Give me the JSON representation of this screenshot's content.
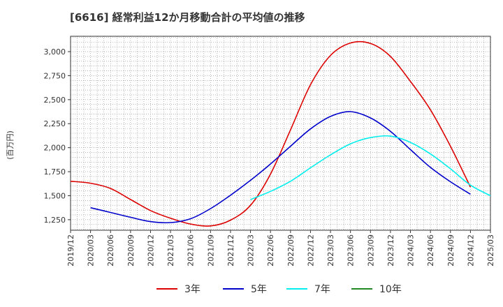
{
  "title": "[6616]  経常利益12か月移動合計の平均値の推移",
  "chart_data": {
    "type": "line",
    "title": "[6616]  経常利益12か月移動合計の平均値の推移",
    "xlabel": "",
    "ylabel": "(百万円)",
    "x_ticks": [
      "2019/12",
      "2020/03",
      "2020/06",
      "2020/09",
      "2020/12",
      "2021/03",
      "2021/06",
      "2021/09",
      "2021/12",
      "2022/03",
      "2022/06",
      "2022/09",
      "2022/12",
      "2023/03",
      "2023/06",
      "2023/09",
      "2023/12",
      "2024/03",
      "2024/06",
      "2024/09",
      "2024/12",
      "2025/03"
    ],
    "y_ticks": [
      1250,
      1500,
      1750,
      2000,
      2250,
      2500,
      2750,
      3000
    ],
    "y_tick_labels": [
      "1,250",
      "1,500",
      "1,750",
      "2,000",
      "2,250",
      "2,500",
      "2,750",
      "3,000"
    ],
    "ylim": [
      1140,
      3160
    ],
    "grid": true,
    "legend_position": "bottom",
    "series": [
      {
        "name": "3年",
        "color": "#dd0000",
        "points": [
          [
            "2019/12",
            1650
          ],
          [
            "2020/03",
            1630
          ],
          [
            "2020/06",
            1575
          ],
          [
            "2020/09",
            1460
          ],
          [
            "2020/12",
            1345
          ],
          [
            "2021/03",
            1265
          ],
          [
            "2021/06",
            1205
          ],
          [
            "2021/09",
            1185
          ],
          [
            "2021/12",
            1245
          ],
          [
            "2022/03",
            1400
          ],
          [
            "2022/06",
            1725
          ],
          [
            "2022/09",
            2185
          ],
          [
            "2022/12",
            2655
          ],
          [
            "2023/03",
            2960
          ],
          [
            "2023/06",
            3090
          ],
          [
            "2023/09",
            3085
          ],
          [
            "2023/12",
            2950
          ],
          [
            "2024/03",
            2690
          ],
          [
            "2024/06",
            2395
          ],
          [
            "2024/09",
            2015
          ],
          [
            "2024/12",
            1590
          ]
        ]
      },
      {
        "name": "5年",
        "color": "#0000cc",
        "points": [
          [
            "2020/03",
            1375
          ],
          [
            "2020/06",
            1325
          ],
          [
            "2020/09",
            1275
          ],
          [
            "2020/12",
            1230
          ],
          [
            "2021/03",
            1220
          ],
          [
            "2021/06",
            1260
          ],
          [
            "2021/09",
            1365
          ],
          [
            "2021/12",
            1505
          ],
          [
            "2022/03",
            1660
          ],
          [
            "2022/06",
            1830
          ],
          [
            "2022/09",
            2015
          ],
          [
            "2022/12",
            2195
          ],
          [
            "2023/03",
            2325
          ],
          [
            "2023/06",
            2375
          ],
          [
            "2023/09",
            2310
          ],
          [
            "2023/12",
            2170
          ],
          [
            "2024/03",
            1980
          ],
          [
            "2024/06",
            1795
          ],
          [
            "2024/09",
            1645
          ],
          [
            "2024/12",
            1515
          ]
        ]
      },
      {
        "name": "7年",
        "color": "#00eeee",
        "points": [
          [
            "2022/03",
            1460
          ],
          [
            "2022/06",
            1545
          ],
          [
            "2022/09",
            1650
          ],
          [
            "2022/12",
            1790
          ],
          [
            "2023/03",
            1925
          ],
          [
            "2023/06",
            2040
          ],
          [
            "2023/09",
            2105
          ],
          [
            "2023/12",
            2120
          ],
          [
            "2024/03",
            2055
          ],
          [
            "2024/06",
            1935
          ],
          [
            "2024/09",
            1780
          ],
          [
            "2024/12",
            1610
          ],
          [
            "2025/03",
            1500
          ]
        ]
      },
      {
        "name": "10年",
        "color": "#228822",
        "points": []
      }
    ]
  }
}
